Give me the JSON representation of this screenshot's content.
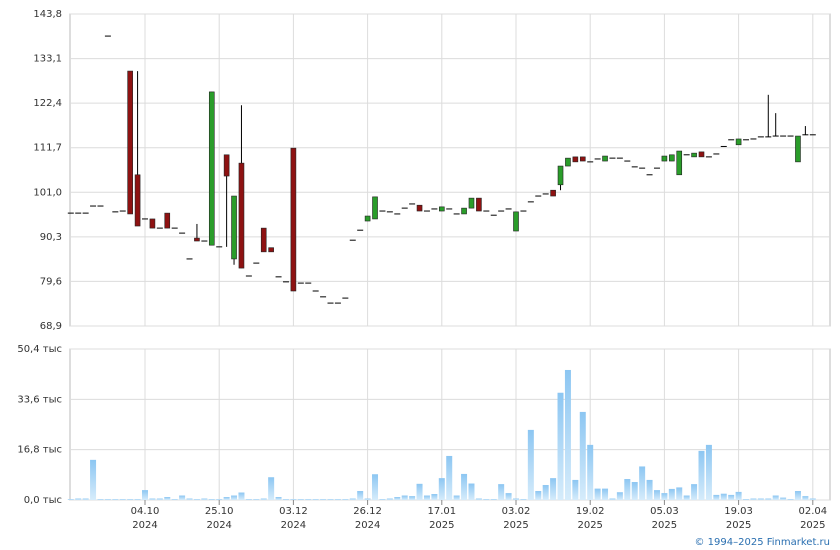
{
  "chart_data": {
    "type": "candlestick",
    "up_color": "#2a9d2a",
    "down_color": "#8e1212",
    "wick_color": "#000000",
    "grid": true,
    "ylim": [
      68.9,
      143.8
    ],
    "yticks": [
      {
        "value": 68.9,
        "label": "68,9"
      },
      {
        "value": 79.6,
        "label": "79,6"
      },
      {
        "value": 90.3,
        "label": "90,3"
      },
      {
        "value": 101.0,
        "label": "101,0"
      },
      {
        "value": 111.7,
        "label": "111,7"
      },
      {
        "value": 122.4,
        "label": "122,4"
      },
      {
        "value": 133.1,
        "label": "133,1"
      },
      {
        "value": 143.8,
        "label": "143,8"
      }
    ],
    "categories": [
      null,
      null,
      null,
      null,
      null,
      null,
      null,
      null,
      null,
      null,
      "04.10",
      null,
      null,
      null,
      null,
      null,
      null,
      null,
      null,
      null,
      "25.10",
      null,
      null,
      null,
      null,
      null,
      null,
      null,
      null,
      null,
      "03.12",
      null,
      null,
      null,
      null,
      null,
      null,
      null,
      null,
      null,
      "26.12",
      null,
      null,
      null,
      null,
      null,
      null,
      null,
      null,
      null,
      "17.01",
      null,
      null,
      null,
      null,
      null,
      null,
      null,
      null,
      null,
      "03.02",
      null,
      null,
      null,
      null,
      null,
      null,
      null,
      null,
      null,
      "19.02",
      null,
      null,
      null,
      null,
      null,
      null,
      null,
      null,
      null,
      "05.03",
      null,
      null,
      null,
      null,
      null,
      null,
      null,
      null,
      null,
      "19.03",
      null,
      null,
      null,
      null,
      null,
      null,
      null,
      null,
      null,
      "02.04"
    ],
    "category_years": [
      null,
      null,
      null,
      null,
      null,
      null,
      null,
      null,
      null,
      null,
      "2024",
      null,
      null,
      null,
      null,
      null,
      null,
      null,
      null,
      null,
      "2024",
      null,
      null,
      null,
      null,
      null,
      null,
      null,
      null,
      null,
      "2024",
      null,
      null,
      null,
      null,
      null,
      null,
      null,
      null,
      null,
      "2024",
      null,
      null,
      null,
      null,
      null,
      null,
      null,
      null,
      null,
      "2025",
      null,
      null,
      null,
      null,
      null,
      null,
      null,
      null,
      null,
      "2025",
      null,
      null,
      null,
      null,
      null,
      null,
      null,
      null,
      null,
      "2025",
      null,
      null,
      null,
      null,
      null,
      null,
      null,
      null,
      null,
      "2025",
      null,
      null,
      null,
      null,
      null,
      null,
      null,
      null,
      null,
      "2025",
      null,
      null,
      null,
      null,
      null,
      null,
      null,
      null,
      null,
      "2025"
    ],
    "ohlc": [
      [
        96,
        96,
        96,
        96
      ],
      [
        96,
        96,
        96,
        96
      ],
      [
        96,
        96,
        96,
        96
      ],
      [
        97.7,
        97.7,
        97.7,
        97.7
      ],
      [
        97.7,
        97.7,
        97.7,
        97.7
      ],
      [
        138.5,
        138.5,
        138.5,
        138.5
      ],
      [
        96.3,
        96.3,
        96.3,
        96.3
      ],
      [
        96.5,
        96.5,
        96.5,
        96.5
      ],
      [
        130.1,
        130.1,
        95.8,
        95.8
      ],
      [
        105.2,
        130.1,
        92.9,
        92.9
      ],
      [
        94.6,
        94.6,
        94.6,
        94.6
      ],
      [
        94.6,
        94.6,
        92.4,
        92.4
      ],
      [
        92.4,
        92.4,
        92.4,
        92.4
      ],
      [
        96,
        96,
        92.4,
        92.4
      ],
      [
        92.4,
        92.4,
        92.4,
        92.4
      ],
      [
        91.2,
        91.2,
        91.2,
        91.2
      ],
      [
        85,
        85,
        85,
        85
      ],
      [
        90,
        93.4,
        89.3,
        89.3
      ],
      [
        89.3,
        89.3,
        89.3,
        89.3
      ],
      [
        88.3,
        125.1,
        88.3,
        125.1
      ],
      [
        87.9,
        87.9,
        87.9,
        87.9
      ],
      [
        110,
        110,
        87.9,
        104.9
      ],
      [
        85,
        100.1,
        83.6,
        100.1
      ],
      [
        108,
        121.9,
        82.8,
        82.8
      ],
      [
        80.9,
        80.9,
        80.9,
        80.9
      ],
      [
        84,
        84,
        84,
        84
      ],
      [
        92.4,
        92.4,
        86.7,
        86.7
      ],
      [
        87.7,
        87.7,
        86.7,
        86.7
      ],
      [
        80.7,
        80.7,
        80.7,
        80.7
      ],
      [
        79.5,
        79.5,
        79.5,
        79.5
      ],
      [
        111.6,
        111.6,
        77.3,
        77.3
      ],
      [
        79.2,
        79.2,
        79.2,
        79.2
      ],
      [
        79.2,
        79.2,
        79.2,
        79.2
      ],
      [
        77.3,
        77.3,
        77.3,
        77.3
      ],
      [
        75.9,
        75.9,
        75.9,
        75.9
      ],
      [
        74.4,
        74.4,
        74.4,
        74.4
      ],
      [
        74.4,
        74.4,
        74.4,
        74.4
      ],
      [
        75.6,
        75.6,
        75.6,
        75.6
      ],
      [
        89.5,
        89.5,
        89.5,
        89.5
      ],
      [
        91.9,
        91.9,
        91.9,
        91.9
      ],
      [
        94.1,
        95.3,
        94.1,
        95.3
      ],
      [
        94.6,
        99.9,
        94.6,
        99.9
      ],
      [
        96.5,
        96.5,
        96.5,
        96.5
      ],
      [
        96.3,
        96.3,
        96.3,
        96.3
      ],
      [
        95.8,
        95.8,
        95.8,
        95.8
      ],
      [
        97.2,
        97.2,
        97.2,
        97.2
      ],
      [
        98.2,
        98.2,
        98.2,
        98.2
      ],
      [
        97.9,
        97.9,
        96.5,
        96.5
      ],
      [
        96.5,
        96.5,
        96.5,
        96.5
      ],
      [
        97,
        97,
        97,
        97
      ],
      [
        96.5,
        97.5,
        96.5,
        97.5
      ],
      [
        97,
        97,
        97,
        97
      ],
      [
        95.8,
        95.8,
        95.8,
        95.8
      ],
      [
        95.8,
        97.2,
        95.8,
        97.2
      ],
      [
        97.2,
        99.6,
        97.2,
        99.6
      ],
      [
        99.6,
        99.6,
        96.5,
        96.5
      ],
      [
        96.5,
        96.5,
        96.5,
        96.5
      ],
      [
        95.5,
        95.5,
        95.5,
        95.5
      ],
      [
        96.5,
        96.5,
        96.5,
        96.5
      ],
      [
        97,
        97,
        97,
        97
      ],
      [
        91.7,
        96.3,
        91.7,
        96.3
      ],
      [
        96.5,
        96.5,
        96.5,
        96.5
      ],
      [
        98.7,
        98.7,
        98.7,
        98.7
      ],
      [
        100.1,
        100.1,
        100.1,
        100.1
      ],
      [
        100.6,
        100.6,
        100.6,
        100.6
      ],
      [
        101.5,
        101.5,
        100.1,
        100.1
      ],
      [
        102.8,
        107.3,
        101.5,
        107.3
      ],
      [
        107.3,
        109.2,
        107.3,
        109.2
      ],
      [
        109.5,
        109.5,
        108.3,
        108.3
      ],
      [
        109.5,
        109.5,
        108.5,
        108.5
      ],
      [
        108.3,
        108.3,
        108.3,
        108.3
      ],
      [
        109,
        109,
        109,
        109
      ],
      [
        108.5,
        109.7,
        108.5,
        109.7
      ],
      [
        109.2,
        109.2,
        109.2,
        109.2
      ],
      [
        109.2,
        109.2,
        109.2,
        109.2
      ],
      [
        108.5,
        108.5,
        108.5,
        108.5
      ],
      [
        107.1,
        107.1,
        107.1,
        107.1
      ],
      [
        106.8,
        106.8,
        106.8,
        106.8
      ],
      [
        105.2,
        105.2,
        105.2,
        105.2
      ],
      [
        106.8,
        106.8,
        106.8,
        106.8
      ],
      [
        108.5,
        109.7,
        108.5,
        109.7
      ],
      [
        108.5,
        110,
        108.5,
        110
      ],
      [
        105.2,
        110.9,
        105.2,
        110.9
      ],
      [
        110,
        110,
        110,
        110
      ],
      [
        109.5,
        110.4,
        109.5,
        110.4
      ],
      [
        110.7,
        110.7,
        109.5,
        109.5
      ],
      [
        109.5,
        109.5,
        109.5,
        109.5
      ],
      [
        110.2,
        110.2,
        110.2,
        110.2
      ],
      [
        112,
        112,
        112,
        112
      ],
      [
        113.6,
        113.6,
        113.6,
        113.6
      ],
      [
        112.4,
        113.8,
        112.4,
        113.8
      ],
      [
        113.6,
        113.6,
        113.6,
        113.6
      ],
      [
        113.8,
        113.8,
        113.8,
        113.8
      ],
      [
        114.3,
        114.3,
        114.3,
        114.3
      ],
      [
        114.3,
        124.4,
        114.3,
        114.3
      ],
      [
        114.5,
        120,
        114.5,
        114.5
      ],
      [
        114.5,
        114.5,
        114.5,
        114.5
      ],
      [
        114.5,
        114.5,
        114.5,
        114.5
      ],
      [
        108.3,
        114.5,
        108.3,
        114.5
      ],
      [
        114.8,
        116.9,
        114.8,
        114.8
      ],
      [
        114.8,
        114.8,
        114.8,
        114.8
      ]
    ],
    "volume": {
      "color": "#8cc6f2",
      "ylim": [
        0,
        50.4
      ],
      "yticks": [
        {
          "value": 0,
          "label": "0,0 тыс"
        },
        {
          "value": 16.8,
          "label": "16,8 тыс"
        },
        {
          "value": 33.6,
          "label": "33,6 тыс"
        },
        {
          "value": 50.4,
          "label": "50,4 тыс"
        }
      ],
      "values": [
        0.3,
        0.5,
        0.5,
        13.4,
        0.3,
        0.3,
        0.3,
        0.3,
        0.3,
        0.3,
        3.3,
        0.5,
        0.5,
        1,
        0.3,
        1.5,
        0.5,
        0.3,
        0.5,
        0.3,
        0.3,
        1,
        1.5,
        2.5,
        0.3,
        0.3,
        0.5,
        7.6,
        1,
        0.3,
        0.3,
        0.3,
        0.3,
        0.3,
        0.3,
        0.3,
        0.3,
        0.3,
        0.5,
        3,
        0.5,
        8.6,
        0.3,
        0.5,
        1,
        1.5,
        1.3,
        5.4,
        1.5,
        2,
        7.3,
        14.7,
        1.5,
        8.7,
        5.5,
        0.5,
        0.3,
        0.3,
        5.3,
        2.3,
        0.5,
        0.3,
        23.4,
        3,
        5,
        7.3,
        35.8,
        43.4,
        6.7,
        29.4,
        18.4,
        3.8,
        3.8,
        0.5,
        2.6,
        7,
        6,
        11.2,
        6.7,
        3.3,
        2.3,
        3.7,
        4.2,
        1.5,
        5.3,
        16.4,
        18.4,
        1.7,
        2.1,
        1.7,
        2.7,
        0.3,
        0.5,
        0.5,
        0.5,
        1.5,
        0.8,
        0.3,
        3,
        1.3,
        0.5
      ]
    },
    "credit": "© 1994–2025 Finmarket.ru"
  }
}
